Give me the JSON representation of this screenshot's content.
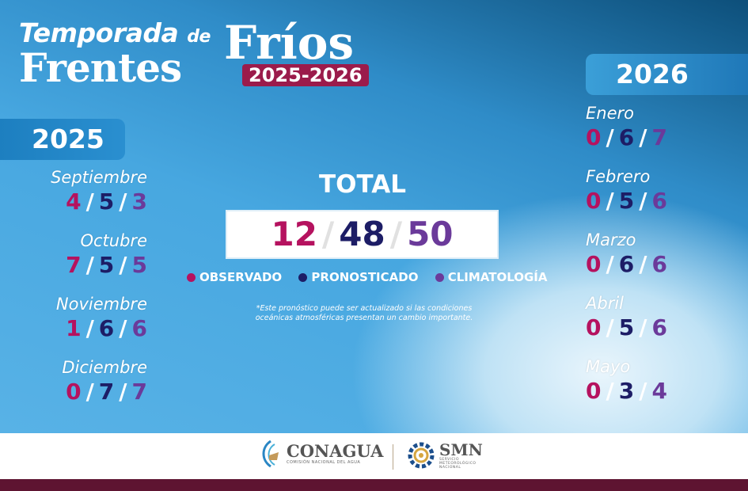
{
  "header": {
    "line1": "Temporada",
    "line1_small": "de",
    "line2": "Frentes",
    "line3": "Fríos",
    "season": "2025-2026"
  },
  "left": {
    "year": "2025",
    "months": [
      {
        "name": "Septiembre",
        "observed": "4",
        "forecast": "5",
        "climatology": "3"
      },
      {
        "name": "Octubre",
        "observed": "7",
        "forecast": "5",
        "climatology": "5"
      },
      {
        "name": "Noviembre",
        "observed": "1",
        "forecast": "6",
        "climatology": "6"
      },
      {
        "name": "Diciembre",
        "observed": "0",
        "forecast": "7",
        "climatology": "7"
      }
    ]
  },
  "right": {
    "year": "2026",
    "months": [
      {
        "name": "Enero",
        "observed": "0",
        "forecast": "6",
        "climatology": "7"
      },
      {
        "name": "Febrero",
        "observed": "0",
        "forecast": "5",
        "climatology": "6"
      },
      {
        "name": "Marzo",
        "observed": "0",
        "forecast": "6",
        "climatology": "6"
      },
      {
        "name": "Abril",
        "observed": "0",
        "forecast": "5",
        "climatology": "6"
      },
      {
        "name": "Mayo",
        "observed": "0",
        "forecast": "3",
        "climatology": "4"
      }
    ]
  },
  "total": {
    "label": "TOTAL",
    "observed": "12",
    "forecast": "48",
    "climatology": "50",
    "separator": "/"
  },
  "legend": [
    {
      "label": "OBSERVADO",
      "color": "#b5125f"
    },
    {
      "label": "PRONOSTICADO",
      "color": "#1d1d66"
    },
    {
      "label": "CLIMATOLOGÍA",
      "color": "#6b3a9a"
    }
  ],
  "note": "*Este pronóstico puede ser actualizado si las condiciones oceánicas atmosféricas presentan un cambio importante.",
  "footer": {
    "conagua": {
      "name": "CONAGUA",
      "sub": "COMISIÓN NACIONAL DEL AGUA"
    },
    "smn": {
      "name": "SMN",
      "sub1": "SERVICIO",
      "sub2": "METEOROLÓGICO",
      "sub3": "NACIONAL"
    }
  }
}
